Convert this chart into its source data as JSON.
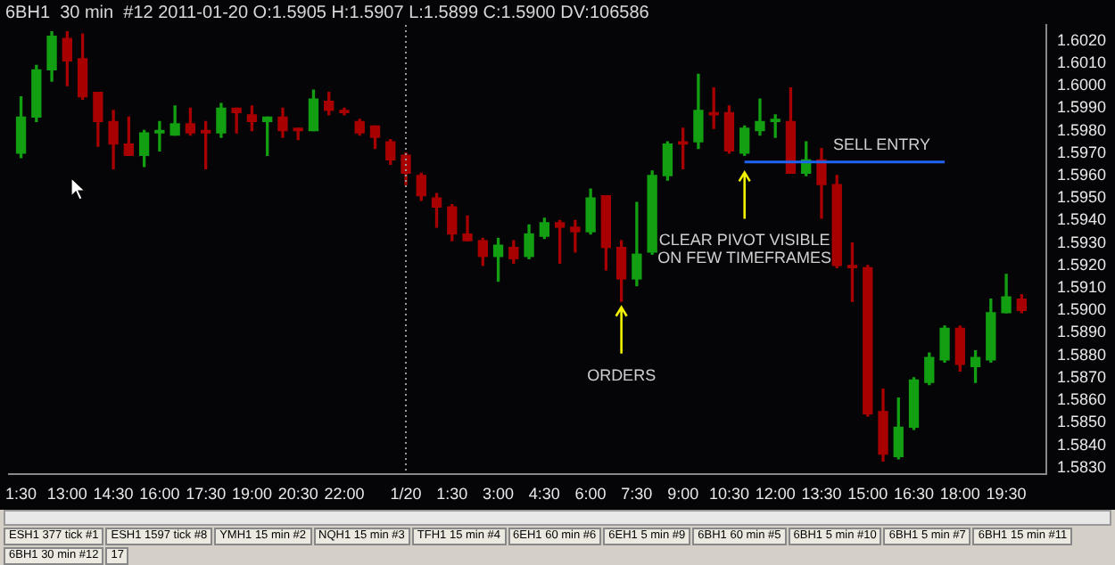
{
  "chart_data": {
    "type": "candlestick",
    "title": "6BH1  30 min  #12 2011-01-20 O:1.5905 H:1.5907 L:1.5899 C:1.5900 DV:106586",
    "x": [
      "2011-01-19T11:30",
      "2011-01-19T12:00",
      "2011-01-19T12:30",
      "2011-01-19T13:00",
      "2011-01-19T13:30",
      "2011-01-19T14:00",
      "2011-01-19T14:30",
      "2011-01-19T15:00",
      "2011-01-19T15:30",
      "2011-01-19T16:00",
      "2011-01-19T16:30",
      "2011-01-19T17:00",
      "2011-01-19T17:30",
      "2011-01-19T18:00",
      "2011-01-19T18:30",
      "2011-01-19T19:00",
      "2011-01-19T19:30",
      "2011-01-19T20:00",
      "2011-01-19T20:30",
      "2011-01-19T21:00",
      "2011-01-19T21:30",
      "2011-01-19T22:00",
      "2011-01-19T22:30",
      "2011-01-19T23:00",
      "2011-01-19T23:30",
      "2011-01-20T00:00",
      "2011-01-20T00:30",
      "2011-01-20T01:00",
      "2011-01-20T01:30",
      "2011-01-20T02:00",
      "2011-01-20T02:30",
      "2011-01-20T03:00",
      "2011-01-20T03:30",
      "2011-01-20T04:00",
      "2011-01-20T04:30",
      "2011-01-20T05:00",
      "2011-01-20T05:30",
      "2011-01-20T06:00",
      "2011-01-20T06:30",
      "2011-01-20T07:00",
      "2011-01-20T07:30",
      "2011-01-20T08:00",
      "2011-01-20T08:30",
      "2011-01-20T09:00",
      "2011-01-20T09:30",
      "2011-01-20T10:00",
      "2011-01-20T10:30",
      "2011-01-20T11:00",
      "2011-01-20T11:30",
      "2011-01-20T12:00",
      "2011-01-20T12:30",
      "2011-01-20T13:00",
      "2011-01-20T13:30",
      "2011-01-20T14:00",
      "2011-01-20T14:30",
      "2011-01-20T15:00",
      "2011-01-20T15:30",
      "2011-01-20T16:00",
      "2011-01-20T16:30",
      "2011-01-20T17:00",
      "2011-01-20T17:30",
      "2011-01-20T18:00",
      "2011-01-20T18:30",
      "2011-01-20T19:00",
      "2011-01-20T19:30",
      "2011-01-20T20:00"
    ],
    "ohlc": [
      [
        1.597,
        1.5995,
        1.5968,
        1.5986
      ],
      [
        1.5986,
        1.6009,
        1.5984,
        1.6007
      ],
      [
        1.6007,
        1.6024,
        1.6002,
        1.6022
      ],
      [
        1.6021,
        1.6024,
        1.6,
        1.6011
      ],
      [
        1.6012,
        1.6023,
        1.5994,
        1.5995
      ],
      [
        1.5997,
        1.5997,
        1.5973,
        1.5984
      ],
      [
        1.5984,
        1.5989,
        1.5963,
        1.5974
      ],
      [
        1.5974,
        1.5986,
        1.5969,
        1.5969
      ],
      [
        1.5969,
        1.598,
        1.5964,
        1.5979
      ],
      [
        1.5979,
        1.5984,
        1.5971,
        1.598
      ],
      [
        1.5978,
        1.5991,
        1.5978,
        1.5983
      ],
      [
        1.5983,
        1.599,
        1.5978,
        1.5979
      ],
      [
        1.598,
        1.5984,
        1.5963,
        1.5979
      ],
      [
        1.5979,
        1.5992,
        1.5977,
        1.599
      ],
      [
        1.599,
        1.599,
        1.5979,
        1.5988
      ],
      [
        1.5987,
        1.5991,
        1.598,
        1.5984
      ],
      [
        1.5984,
        1.5986,
        1.5969,
        1.5986
      ],
      [
        1.5986,
        1.599,
        1.5977,
        1.598
      ],
      [
        1.5981,
        1.5981,
        1.5976,
        1.598
      ],
      [
        1.598,
        1.5998,
        1.598,
        1.5994
      ],
      [
        1.5993,
        1.5997,
        1.5987,
        1.5989
      ],
      [
        1.5989,
        1.599,
        1.5987,
        1.5988
      ],
      [
        1.5984,
        1.5985,
        1.5978,
        1.5979
      ],
      [
        1.5982,
        1.5982,
        1.5972,
        1.5977
      ],
      [
        1.5975,
        1.5976,
        1.5965,
        1.5967
      ],
      [
        1.5969,
        1.597,
        1.5956,
        1.5961
      ],
      [
        1.596,
        1.5961,
        1.5949,
        1.5951
      ],
      [
        1.595,
        1.5952,
        1.5937,
        1.5946
      ],
      [
        1.5946,
        1.5947,
        1.5931,
        1.5934
      ],
      [
        1.5934,
        1.5942,
        1.5931,
        1.5931
      ],
      [
        1.5931,
        1.5932,
        1.592,
        1.5924
      ],
      [
        1.5924,
        1.5932,
        1.5913,
        1.5929
      ],
      [
        1.5928,
        1.5931,
        1.5921,
        1.5923
      ],
      [
        1.5924,
        1.5938,
        1.5923,
        1.5934
      ],
      [
        1.5933,
        1.5941,
        1.5932,
        1.5939
      ],
      [
        1.5939,
        1.594,
        1.5921,
        1.5937
      ],
      [
        1.5937,
        1.594,
        1.5926,
        1.5935
      ],
      [
        1.5935,
        1.5954,
        1.5934,
        1.595
      ],
      [
        1.5951,
        1.5951,
        1.5918,
        1.5928
      ],
      [
        1.5928,
        1.5931,
        1.5904,
        1.5914
      ],
      [
        1.5914,
        1.5948,
        1.5911,
        1.5925
      ],
      [
        1.5926,
        1.5962,
        1.5925,
        1.596
      ],
      [
        1.596,
        1.5975,
        1.5958,
        1.5974
      ],
      [
        1.5975,
        1.5981,
        1.5963,
        1.5974
      ],
      [
        1.5975,
        1.6005,
        1.5972,
        1.5989
      ],
      [
        1.5988,
        1.5999,
        1.5981,
        1.5987
      ],
      [
        1.5988,
        1.5991,
        1.597,
        1.5971
      ],
      [
        1.597,
        1.5982,
        1.5969,
        1.5981
      ],
      [
        1.598,
        1.5994,
        1.5978,
        1.5984
      ],
      [
        1.5984,
        1.5987,
        1.5977,
        1.5985
      ],
      [
        1.5984,
        1.5999,
        1.5961,
        1.5961
      ],
      [
        1.5961,
        1.5975,
        1.596,
        1.5967
      ],
      [
        1.5967,
        1.5972,
        1.5941,
        1.5956
      ],
      [
        1.5956,
        1.596,
        1.5919,
        1.592
      ],
      [
        1.592,
        1.593,
        1.5904,
        1.5919
      ],
      [
        1.5919,
        1.592,
        1.5853,
        1.5854
      ],
      [
        1.5855,
        1.5865,
        1.5833,
        1.5836
      ],
      [
        1.5835,
        1.5861,
        1.5834,
        1.5848
      ],
      [
        1.5848,
        1.587,
        1.5847,
        1.5869
      ],
      [
        1.5868,
        1.5881,
        1.5867,
        1.5879
      ],
      [
        1.5878,
        1.5893,
        1.5877,
        1.5892
      ],
      [
        1.5892,
        1.5893,
        1.5873,
        1.5876
      ],
      [
        1.5875,
        1.5882,
        1.5868,
        1.5879
      ],
      [
        1.5878,
        1.5905,
        1.5877,
        1.5899
      ],
      [
        1.5899,
        1.5916,
        1.5899,
        1.5906
      ],
      [
        1.5905,
        1.5907,
        1.5899,
        1.59
      ]
    ],
    "colors": [
      "#12a012",
      "#12a012",
      "#12a012",
      "#a80000",
      "#a80000",
      "#a80000",
      "#a80000",
      "#a80000",
      "#12a012",
      "#12a012",
      "#12a012",
      "#a80000",
      "#a80000",
      "#12a012",
      "#a80000",
      "#a80000",
      "#12a012",
      "#a80000",
      "#a80000",
      "#12a012",
      "#a80000",
      "#a80000",
      "#a80000",
      "#a80000",
      "#a80000",
      "#a80000",
      "#a80000",
      "#a80000",
      "#a80000",
      "#a80000",
      "#a80000",
      "#12a012",
      "#a80000",
      "#12a012",
      "#12a012",
      "#a80000",
      "#a80000",
      "#12a012",
      "#a80000",
      "#a80000",
      "#12a012",
      "#12a012",
      "#12a012",
      "#a80000",
      "#12a012",
      "#a80000",
      "#a80000",
      "#12a012",
      "#12a012",
      "#12a012",
      "#a80000",
      "#12a012",
      "#a80000",
      "#a80000",
      "#a80000",
      "#a80000",
      "#a80000",
      "#12a012",
      "#12a012",
      "#12a012",
      "#12a012",
      "#a80000",
      "#12a012",
      "#12a012",
      "#12a012",
      "#a80000"
    ],
    "series": [
      {
        "type": "line",
        "name": "SELL ENTRY",
        "x": [
          "2011-01-20T11:00",
          "2011-01-20T17:30"
        ],
        "values": [
          1.5966,
          1.5966
        ],
        "color": "#1e64f0"
      }
    ],
    "xlim": [
      "2011-01-19T11:06",
      "2011-01-20T20:48"
    ],
    "xticks": [
      {
        "value": "2011-01-19T11:30",
        "label": "1:30"
      },
      {
        "value": "2011-01-19T13:00",
        "label": "13:00"
      },
      {
        "value": "2011-01-19T14:30",
        "label": "14:30"
      },
      {
        "value": "2011-01-19T16:00",
        "label": "16:00"
      },
      {
        "value": "2011-01-19T17:30",
        "label": "17:30"
      },
      {
        "value": "2011-01-19T19:00",
        "label": "19:00"
      },
      {
        "value": "2011-01-19T20:30",
        "label": "20:30"
      },
      {
        "value": "2011-01-19T22:00",
        "label": "22:00"
      },
      {
        "value": "2011-01-20T00:00",
        "label": "1/20"
      },
      {
        "value": "2011-01-20T01:30",
        "label": "1:30"
      },
      {
        "value": "2011-01-20T03:00",
        "label": "3:00"
      },
      {
        "value": "2011-01-20T04:30",
        "label": "4:30"
      },
      {
        "value": "2011-01-20T06:00",
        "label": "6:00"
      },
      {
        "value": "2011-01-20T07:30",
        "label": "7:30"
      },
      {
        "value": "2011-01-20T09:00",
        "label": "9:00"
      },
      {
        "value": "2011-01-20T10:30",
        "label": "10:30"
      },
      {
        "value": "2011-01-20T12:00",
        "label": "12:00"
      },
      {
        "value": "2011-01-20T13:30",
        "label": "13:30"
      },
      {
        "value": "2011-01-20T15:00",
        "label": "15:00"
      },
      {
        "value": "2011-01-20T16:30",
        "label": "16:30"
      },
      {
        "value": "2011-01-20T18:00",
        "label": "18:00"
      },
      {
        "value": "2011-01-20T19:30",
        "label": "19:30"
      }
    ],
    "ylim": [
      1.5827,
      1.6027
    ],
    "yticks": [
      {
        "value": 1.583,
        "label": "1.5830"
      },
      {
        "value": 1.584,
        "label": "1.5840"
      },
      {
        "value": 1.585,
        "label": "1.5850"
      },
      {
        "value": 1.586,
        "label": "1.5860"
      },
      {
        "value": 1.587,
        "label": "1.5870"
      },
      {
        "value": 1.588,
        "label": "1.5880"
      },
      {
        "value": 1.589,
        "label": "1.5890"
      },
      {
        "value": 1.59,
        "label": "1.5900"
      },
      {
        "value": 1.591,
        "label": "1.5910"
      },
      {
        "value": 1.592,
        "label": "1.5920"
      },
      {
        "value": 1.593,
        "label": "1.5930"
      },
      {
        "value": 1.594,
        "label": "1.5940"
      },
      {
        "value": 1.595,
        "label": "1.5950"
      },
      {
        "value": 1.596,
        "label": "1.5960"
      },
      {
        "value": 1.597,
        "label": "1.5970"
      },
      {
        "value": 1.598,
        "label": "1.5980"
      },
      {
        "value": 1.599,
        "label": "1.5990"
      },
      {
        "value": 1.6,
        "label": "1.6000"
      },
      {
        "value": 1.601,
        "label": "1.6010"
      },
      {
        "value": 1.602,
        "label": "1.6020"
      }
    ],
    "ref_lines": [
      {
        "axis": "x",
        "value": "2011-01-20T00:00",
        "color": "#9a9a9a",
        "line_style": "dotted"
      }
    ],
    "annotations": [
      {
        "text": "ORDERS",
        "x": "2011-01-20T07:00",
        "y": 1.5903
      },
      {
        "text": "CLEAR PIVOT VISIBLE\nON FEW TIMEFRAMES",
        "x": "2011-01-20T11:00",
        "y": 1.5963
      },
      "ESH1  377 tick  #1",
      "ESH1  1597 tick  #8",
      "YMH1  15 min  #2",
      "NQH1  15 min  #3",
      "TFH1  15 min  #4",
      "6EH1  60 min  #6",
      "6EH1  5 min  #9",
      "6BH1  60 min  #5",
      "6BH1  5 min  #10",
      "6BH1  5 min  #7",
      "6BH1  15 min  #11",
      "6BH1  30 min  #12",
      "17"
    ],
    "grid": false,
    "legend": false
  }
}
